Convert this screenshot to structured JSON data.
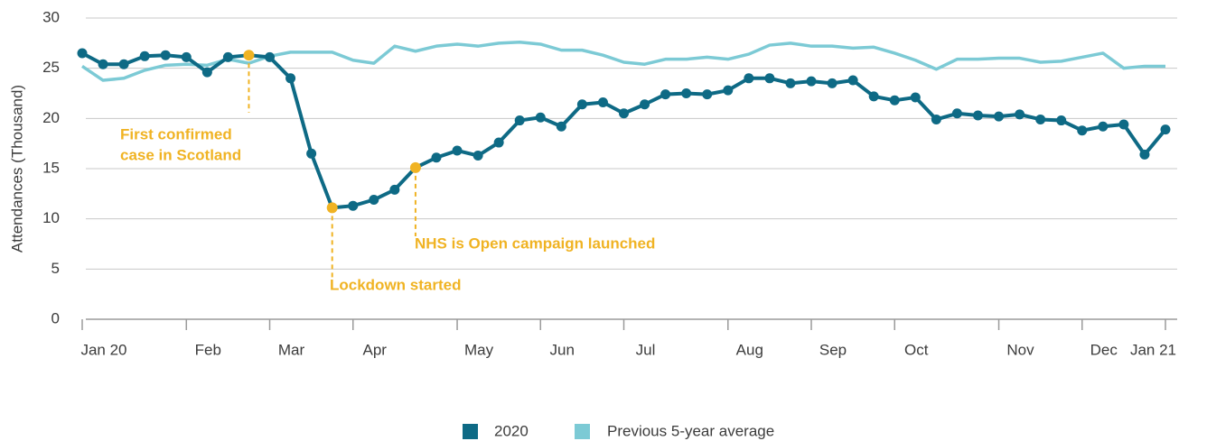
{
  "chart_data": {
    "type": "line",
    "y_label": "Attendances (Thousand)",
    "categories": [
      "Jan 20",
      null,
      null,
      null,
      null,
      "Feb",
      null,
      null,
      null,
      "Mar",
      null,
      null,
      null,
      "Apr",
      null,
      null,
      null,
      null,
      "May",
      null,
      null,
      null,
      "Jun",
      null,
      null,
      null,
      "Jul",
      null,
      null,
      null,
      null,
      "Aug",
      null,
      null,
      null,
      "Sep",
      null,
      null,
      null,
      "Oct",
      null,
      null,
      null,
      null,
      "Nov",
      null,
      null,
      null,
      "Dec",
      null,
      null,
      null,
      "Jan 21"
    ],
    "series": [
      {
        "name": "2020",
        "color": "#0e6a85",
        "markers": true,
        "values": [
          26.5,
          25.4,
          25.4,
          26.2,
          26.3,
          26.1,
          24.6,
          26.1,
          26.3,
          26.1,
          24.0,
          16.5,
          11.1,
          11.3,
          11.9,
          12.9,
          15.1,
          16.1,
          16.8,
          16.3,
          17.6,
          19.8,
          20.1,
          19.2,
          21.4,
          21.6,
          20.5,
          21.4,
          22.4,
          22.5,
          22.4,
          22.8,
          24.0,
          24.0,
          23.5,
          23.7,
          23.5,
          23.8,
          22.2,
          21.8,
          22.1,
          19.9,
          20.5,
          20.3,
          20.2,
          20.4,
          19.9,
          19.8,
          18.8,
          19.2,
          19.4,
          16.4,
          18.9
        ]
      },
      {
        "name": "Previous 5-year average",
        "color": "#7ccad5",
        "markers": false,
        "values": [
          25.2,
          23.8,
          24.0,
          24.8,
          25.3,
          25.4,
          25.3,
          25.9,
          25.5,
          26.2,
          26.6,
          26.6,
          26.6,
          25.8,
          25.5,
          27.2,
          26.7,
          27.2,
          27.4,
          27.2,
          27.5,
          27.6,
          27.4,
          26.8,
          26.8,
          26.3,
          25.6,
          25.4,
          25.9,
          25.9,
          26.1,
          25.9,
          26.4,
          27.3,
          27.5,
          27.2,
          27.2,
          27.0,
          27.1,
          26.5,
          25.8,
          24.9,
          25.9,
          25.9,
          26.0,
          26.0,
          25.6,
          25.7,
          26.1,
          26.5,
          25.0,
          25.2,
          25.2
        ]
      }
    ],
    "annotations": [
      {
        "point": "chart_data.series.0.values.8",
        "color": "#f0b323",
        "lines": [
          "First confirmed",
          "case in Scotland"
        ]
      },
      {
        "point": "chart_data.series.0.values.12",
        "color": "#f0b323",
        "lines": [
          "Lockdown started"
        ]
      },
      {
        "point": "chart_data.series.0.values.16",
        "color": "#f0b323",
        "lines": [
          "NHS is Open campaign launched"
        ]
      }
    ],
    "ylim": [
      0,
      30
    ],
    "yticks": [
      0,
      5,
      10,
      15,
      20,
      25,
      30
    ],
    "grid": true
  }
}
